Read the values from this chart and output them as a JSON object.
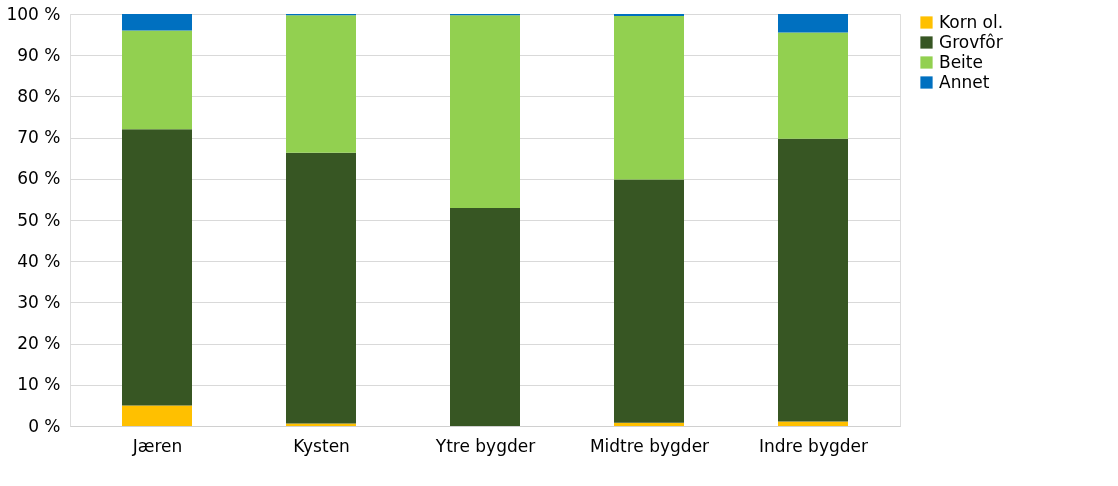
{
  "chart_data": {
    "type": "bar",
    "stacked": true,
    "categories": [
      "Jæren",
      "Kysten",
      "Ytre bygder",
      "Midtre bygder",
      "Indre bygder"
    ],
    "series": [
      {
        "name": "Korn ol.",
        "color": "#ffc000",
        "values": [
          5,
          0.6,
          0,
          0.8,
          1.1
        ]
      },
      {
        "name": "Grovfôr",
        "color": "#375623",
        "values": [
          67,
          65.7,
          52.9,
          59,
          68.6
        ]
      },
      {
        "name": "Beite",
        "color": "#92d050",
        "values": [
          24,
          33.4,
          46.8,
          39.7,
          25.8
        ]
      },
      {
        "name": "Annet",
        "color": "#0070c0",
        "values": [
          4,
          0.3,
          0.3,
          0.5,
          4.5
        ]
      }
    ],
    "ylim": [
      0,
      100
    ],
    "yticks": [
      {
        "value": 0,
        "label": "0 %"
      },
      {
        "value": 10,
        "label": "10 %"
      },
      {
        "value": 20,
        "label": "20 %"
      },
      {
        "value": 30,
        "label": "30 %"
      },
      {
        "value": 40,
        "label": "40 %"
      },
      {
        "value": 50,
        "label": "50 %"
      },
      {
        "value": 60,
        "label": "60 %"
      },
      {
        "value": 70,
        "label": "70 %"
      },
      {
        "value": 80,
        "label": "80 %"
      },
      {
        "value": 90,
        "label": "90 %"
      },
      {
        "value": 100,
        "label": "100 %"
      }
    ],
    "grid": "y",
    "legend": "right"
  }
}
